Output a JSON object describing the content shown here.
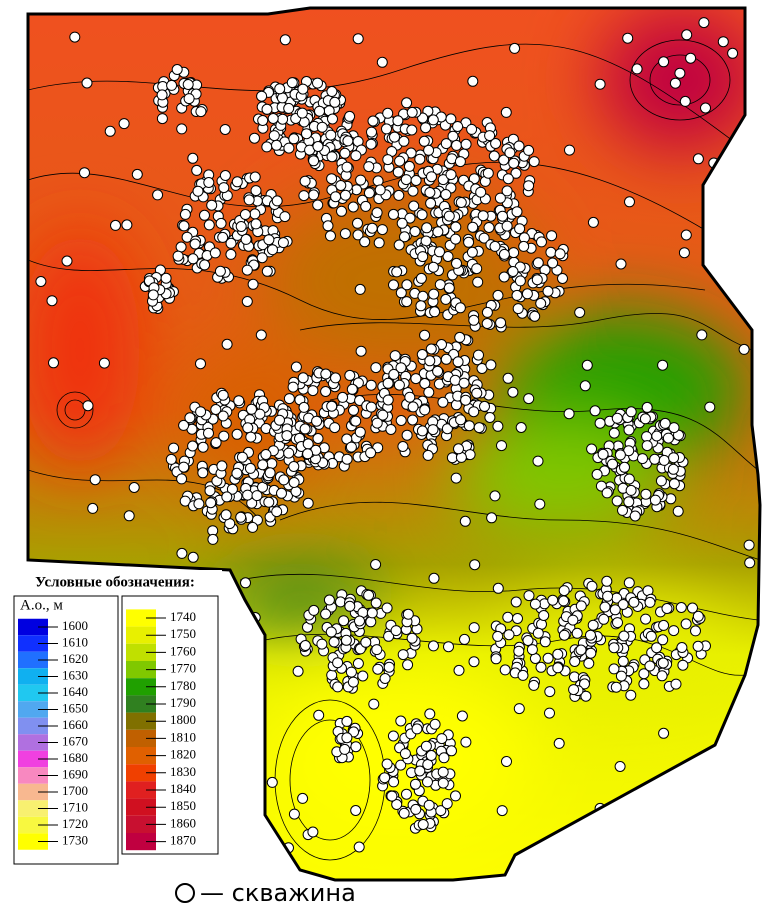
{
  "legend": {
    "title": "Условные обозначения:",
    "unit": "А.о., м",
    "columns": [
      [
        {
          "value": 1600,
          "color": "#0000e0"
        },
        {
          "value": 1610,
          "color": "#1030ff"
        },
        {
          "value": 1620,
          "color": "#2070ff"
        },
        {
          "value": 1630,
          "color": "#10b0f0"
        },
        {
          "value": 1640,
          "color": "#20c8f0"
        },
        {
          "value": 1650,
          "color": "#50a8f0"
        },
        {
          "value": 1660,
          "color": "#8090f0"
        },
        {
          "value": 1670,
          "color": "#b070e0"
        },
        {
          "value": 1680,
          "color": "#f040e0"
        },
        {
          "value": 1690,
          "color": "#f888c0"
        },
        {
          "value": 1700,
          "color": "#f8b890"
        },
        {
          "value": 1710,
          "color": "#f8f070"
        },
        {
          "value": 1720,
          "color": "#f8f840"
        },
        {
          "value": 1730,
          "color": "#ffff00"
        }
      ],
      [
        {
          "value": 1740,
          "color": "#ffff00"
        },
        {
          "value": 1750,
          "color": "#e8f000"
        },
        {
          "value": 1760,
          "color": "#c0e000"
        },
        {
          "value": 1770,
          "color": "#80c800"
        },
        {
          "value": 1780,
          "color": "#20a000"
        },
        {
          "value": 1790,
          "color": "#308020"
        },
        {
          "value": 1800,
          "color": "#807000"
        },
        {
          "value": 1810,
          "color": "#c06000"
        },
        {
          "value": 1820,
          "color": "#e06000"
        },
        {
          "value": 1830,
          "color": "#f04000"
        },
        {
          "value": 1840,
          "color": "#e02020"
        },
        {
          "value": 1850,
          "color": "#d01020"
        },
        {
          "value": 1860,
          "color": "#c81030"
        },
        {
          "value": 1870,
          "color": "#c00040"
        }
      ]
    ]
  },
  "well_label": "— скважина"
}
